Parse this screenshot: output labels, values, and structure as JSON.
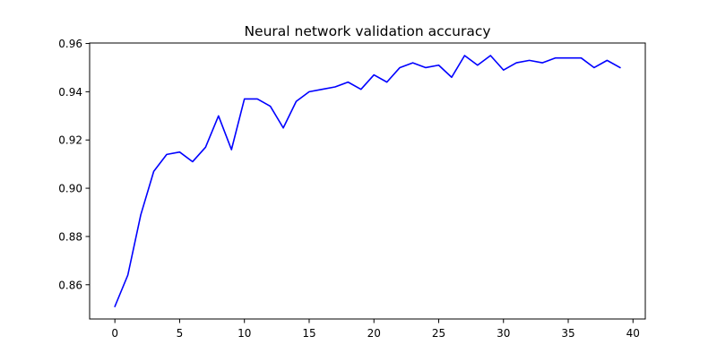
{
  "chart_data": {
    "type": "line",
    "title": "Neural network validation accuracy",
    "xlabel": "",
    "ylabel": "",
    "xlim": [
      -1.95,
      40.95
    ],
    "ylim": [
      0.8458,
      0.9602
    ],
    "xticks": [
      0,
      5,
      10,
      15,
      20,
      25,
      30,
      35,
      40
    ],
    "yticks": [
      0.86,
      0.88,
      0.9,
      0.92,
      0.94,
      0.96
    ],
    "ytick_labels": [
      "0.86",
      "0.88",
      "0.90",
      "0.92",
      "0.94",
      "0.96"
    ],
    "grid": false,
    "legend": "none",
    "colors": {
      "line": "#0000ff",
      "axes": "#000000",
      "background": "#ffffff"
    },
    "series": [
      {
        "x": [
          0,
          1,
          2,
          3,
          4,
          5,
          6,
          7,
          8,
          9,
          10,
          11,
          12,
          13,
          14,
          15,
          16,
          17,
          18,
          19,
          20,
          21,
          22,
          23,
          24,
          25,
          26,
          27,
          28,
          29,
          30,
          31,
          32,
          33,
          34,
          35,
          36,
          37,
          38,
          39
        ],
        "values": [
          0.851,
          0.864,
          0.889,
          0.907,
          0.914,
          0.915,
          0.911,
          0.917,
          0.93,
          0.916,
          0.937,
          0.937,
          0.934,
          0.925,
          0.936,
          0.94,
          0.941,
          0.942,
          0.944,
          0.941,
          0.947,
          0.944,
          0.95,
          0.952,
          0.95,
          0.951,
          0.946,
          0.955,
          0.951,
          0.955,
          0.949,
          0.952,
          0.953,
          0.952,
          0.954,
          0.954,
          0.954,
          0.95,
          0.953,
          0.95
        ]
      }
    ]
  }
}
